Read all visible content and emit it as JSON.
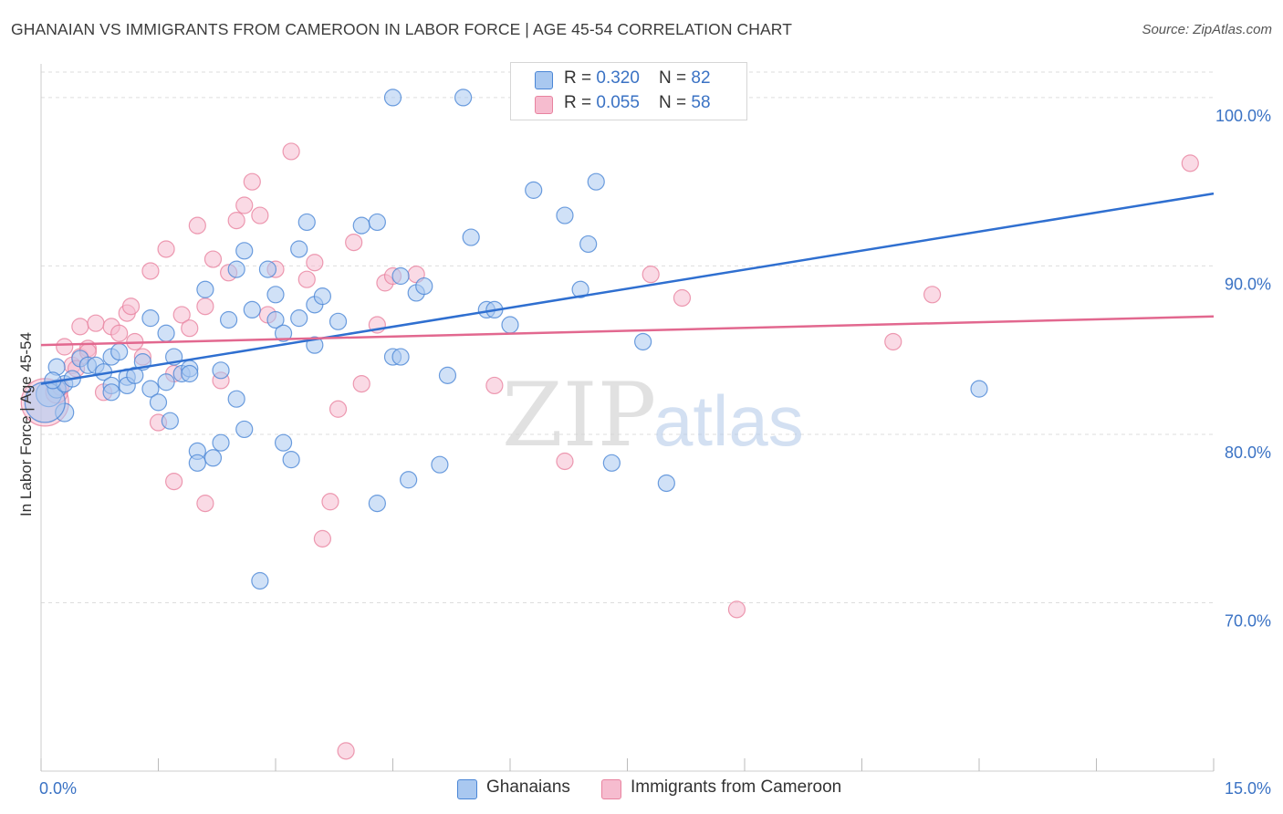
{
  "title": "GHANAIAN VS IMMIGRANTS FROM CAMEROON IN LABOR FORCE | AGE 45-54 CORRELATION CHART",
  "source": "Source: ZipAtlas.com",
  "legend": {
    "rows": [
      {
        "r_label": "R = ",
        "r_value": "0.320",
        "n_label": "N = ",
        "n_value": "82"
      },
      {
        "r_label": "R = ",
        "r_value": "0.055",
        "n_label": "N = ",
        "n_value": "58"
      }
    ],
    "bottom": [
      "Ghanaians",
      "Immigrants from Cameroon"
    ]
  },
  "colors": {
    "blue_fill": "#a9c8f0",
    "blue_stroke": "#4a86d6",
    "blue_line": "#2f6fd0",
    "pink_fill": "#f6bccf",
    "pink_stroke": "#e8829f",
    "pink_line": "#e2688f",
    "tick_label": "#3a72c4",
    "grid": "#dddddd"
  },
  "chart_data": {
    "type": "scatter",
    "title": "GHANAIAN VS IMMIGRANTS FROM CAMEROON IN LABOR FORCE | AGE 45-54 CORRELATION CHART",
    "xlabel": "",
    "ylabel": "In Labor Force | Age 45-54",
    "xlim": [
      0,
      15
    ],
    "ylim": [
      60,
      102
    ],
    "x_tick_labels": [
      "0.0%",
      "15.0%"
    ],
    "y_ticks": [
      70,
      80,
      90,
      100
    ],
    "y_tick_labels": [
      "70.0%",
      "80.0%",
      "90.0%",
      "100.0%"
    ],
    "watermark": {
      "zip": "ZIP",
      "atlas": "atlas"
    },
    "series": [
      {
        "name": "Ghanaians",
        "r": 0.32,
        "n": 82,
        "trend": {
          "x": [
            0,
            15
          ],
          "y": [
            83.0,
            94.3
          ]
        },
        "points": [
          [
            0.1,
            82.4,
            14
          ],
          [
            0.2,
            82.7,
            10
          ],
          [
            0.3,
            81.3,
            10
          ],
          [
            0.05,
            81.9,
            22
          ],
          [
            0.2,
            84.0,
            9
          ],
          [
            0.5,
            84.5,
            9
          ],
          [
            0.6,
            84.1,
            9
          ],
          [
            0.7,
            84.1,
            9
          ],
          [
            0.8,
            83.7,
            9
          ],
          [
            0.9,
            82.9,
            9
          ],
          [
            0.9,
            82.5,
            9
          ],
          [
            0.9,
            84.6,
            9
          ],
          [
            1.0,
            84.9,
            9
          ],
          [
            1.1,
            83.4,
            9
          ],
          [
            1.1,
            82.9,
            9
          ],
          [
            1.2,
            83.5,
            9
          ],
          [
            1.3,
            84.3,
            9
          ],
          [
            1.4,
            86.9,
            9
          ],
          [
            1.4,
            82.7,
            9
          ],
          [
            1.5,
            81.9,
            9
          ],
          [
            1.6,
            83.1,
            9
          ],
          [
            1.6,
            86.0,
            9
          ],
          [
            1.65,
            80.8,
            9
          ],
          [
            1.7,
            84.6,
            9
          ],
          [
            1.8,
            83.6,
            9
          ],
          [
            1.9,
            83.9,
            9
          ],
          [
            1.9,
            83.6,
            9
          ],
          [
            2.0,
            79.0,
            9
          ],
          [
            2.0,
            78.3,
            9
          ],
          [
            2.1,
            88.6,
            9
          ],
          [
            2.2,
            78.6,
            9
          ],
          [
            2.3,
            79.5,
            9
          ],
          [
            2.3,
            83.8,
            9
          ],
          [
            2.4,
            86.8,
            9
          ],
          [
            2.5,
            82.1,
            9
          ],
          [
            2.5,
            89.8,
            9
          ],
          [
            2.6,
            80.3,
            9
          ],
          [
            2.6,
            90.9,
            9
          ],
          [
            2.7,
            87.4,
            9
          ],
          [
            2.8,
            71.3,
            9
          ],
          [
            2.9,
            89.8,
            9
          ],
          [
            3.0,
            88.3,
            9
          ],
          [
            3.0,
            86.8,
            9
          ],
          [
            3.1,
            86.0,
            9
          ],
          [
            3.1,
            79.5,
            9
          ],
          [
            3.2,
            78.5,
            9
          ],
          [
            3.3,
            86.9,
            9
          ],
          [
            3.3,
            91.0,
            9
          ],
          [
            3.4,
            92.6,
            9
          ],
          [
            3.5,
            85.3,
            9
          ],
          [
            3.5,
            87.7,
            9
          ],
          [
            3.6,
            88.2,
            9
          ],
          [
            3.8,
            86.7,
            9
          ],
          [
            4.1,
            92.4,
            9
          ],
          [
            4.3,
            92.6,
            9
          ],
          [
            4.3,
            75.9,
            9
          ],
          [
            4.5,
            100.0,
            9
          ],
          [
            4.5,
            84.6,
            9
          ],
          [
            4.6,
            84.6,
            9
          ],
          [
            4.6,
            89.4,
            9
          ],
          [
            4.7,
            77.3,
            9
          ],
          [
            4.8,
            88.4,
            9
          ],
          [
            4.9,
            88.8,
            9
          ],
          [
            5.1,
            78.2,
            9
          ],
          [
            5.2,
            83.5,
            9
          ],
          [
            5.4,
            100.0,
            9
          ],
          [
            5.5,
            91.7,
            9
          ],
          [
            5.7,
            87.4,
            9
          ],
          [
            5.8,
            87.4,
            9
          ],
          [
            6.0,
            86.5,
            9
          ],
          [
            6.3,
            94.5,
            9
          ],
          [
            6.7,
            93.0,
            9
          ],
          [
            6.9,
            88.6,
            9
          ],
          [
            7.0,
            91.3,
            9
          ],
          [
            7.1,
            95.0,
            9
          ],
          [
            7.3,
            78.3,
            9
          ],
          [
            7.7,
            85.5,
            9
          ],
          [
            8.0,
            77.1,
            9
          ],
          [
            12.0,
            82.7,
            9
          ],
          [
            0.3,
            83.0,
            9
          ],
          [
            0.4,
            83.3,
            9
          ],
          [
            0.15,
            83.2,
            9
          ]
        ]
      },
      {
        "name": "Immigrants from Cameroon",
        "r": 0.055,
        "n": 58,
        "trend": {
          "x": [
            0,
            15
          ],
          "y": [
            85.3,
            87.0
          ]
        },
        "points": [
          [
            0.05,
            81.9,
            26
          ],
          [
            0.2,
            82.5,
            12
          ],
          [
            0.25,
            82.8,
            9
          ],
          [
            0.4,
            84.1,
            9
          ],
          [
            0.5,
            84.6,
            9
          ],
          [
            0.5,
            86.4,
            9
          ],
          [
            0.6,
            85.1,
            9
          ],
          [
            0.6,
            84.9,
            9
          ],
          [
            0.7,
            86.6,
            9
          ],
          [
            0.8,
            82.5,
            9
          ],
          [
            0.9,
            86.4,
            9
          ],
          [
            1.0,
            86.0,
            9
          ],
          [
            1.1,
            87.2,
            9
          ],
          [
            1.15,
            87.6,
            9
          ],
          [
            1.2,
            85.5,
            9
          ],
          [
            1.3,
            84.6,
            9
          ],
          [
            1.4,
            89.7,
            9
          ],
          [
            1.5,
            80.7,
            9
          ],
          [
            1.6,
            91.0,
            9
          ],
          [
            1.7,
            77.2,
            9
          ],
          [
            1.8,
            87.1,
            9
          ],
          [
            1.9,
            86.3,
            9
          ],
          [
            2.0,
            92.4,
            9
          ],
          [
            2.1,
            87.6,
            9
          ],
          [
            2.1,
            75.9,
            9
          ],
          [
            2.2,
            90.4,
            9
          ],
          [
            2.3,
            83.2,
            9
          ],
          [
            2.4,
            89.6,
            9
          ],
          [
            2.5,
            92.7,
            9
          ],
          [
            2.6,
            93.6,
            9
          ],
          [
            2.7,
            95.0,
            9
          ],
          [
            2.8,
            93.0,
            9
          ],
          [
            2.9,
            87.1,
            9
          ],
          [
            3.0,
            89.8,
            9
          ],
          [
            3.2,
            96.8,
            9
          ],
          [
            3.4,
            89.2,
            9
          ],
          [
            3.5,
            90.2,
            9
          ],
          [
            3.6,
            73.8,
            9
          ],
          [
            3.7,
            76.0,
            9
          ],
          [
            3.8,
            81.5,
            9
          ],
          [
            3.9,
            61.2,
            9
          ],
          [
            4.0,
            91.4,
            9
          ],
          [
            4.1,
            83.0,
            9
          ],
          [
            4.3,
            86.5,
            9
          ],
          [
            4.4,
            89.0,
            9
          ],
          [
            4.5,
            89.4,
            9
          ],
          [
            4.8,
            89.5,
            9
          ],
          [
            5.8,
            82.9,
            9
          ],
          [
            6.7,
            78.4,
            9
          ],
          [
            7.8,
            89.5,
            9
          ],
          [
            8.2,
            88.1,
            9
          ],
          [
            8.9,
            69.6,
            9
          ],
          [
            10.9,
            85.5,
            9
          ],
          [
            11.4,
            88.3,
            9
          ],
          [
            14.7,
            96.1,
            9
          ],
          [
            1.7,
            83.6,
            9
          ],
          [
            0.3,
            85.2,
            9
          ],
          [
            0.45,
            83.9,
            9
          ]
        ]
      }
    ]
  }
}
